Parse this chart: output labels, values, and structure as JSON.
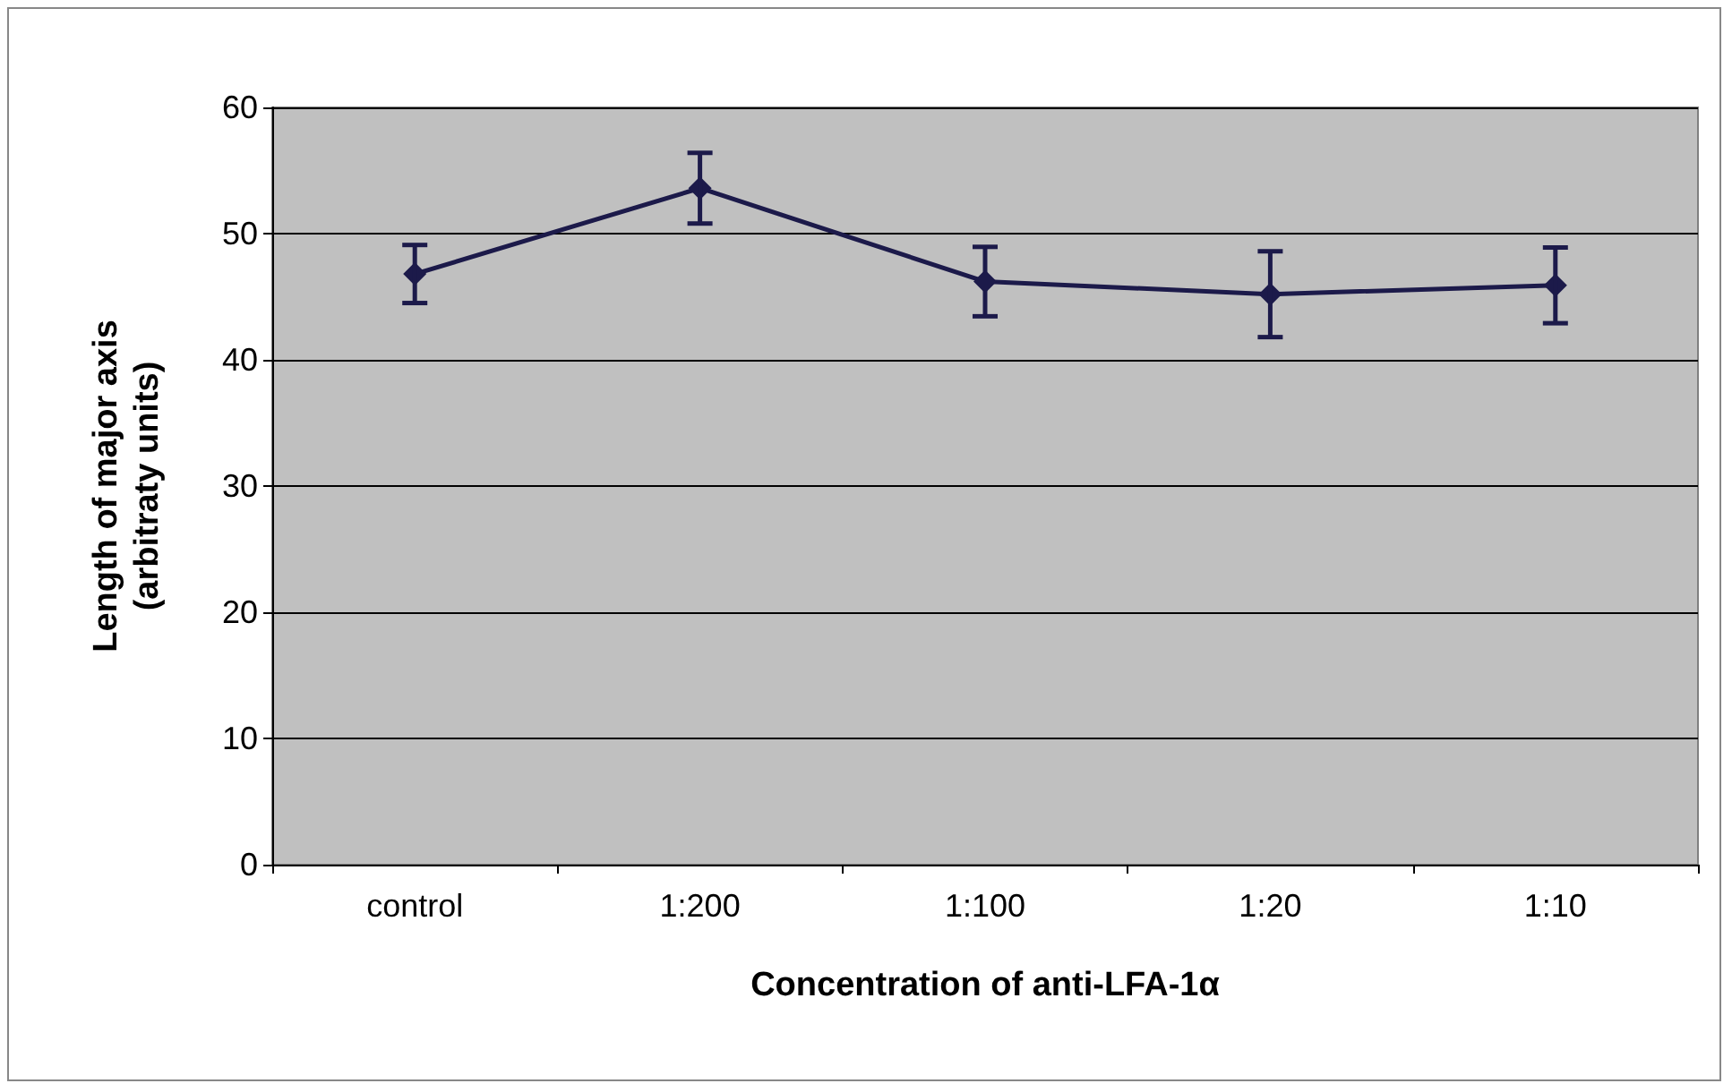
{
  "chart_data": {
    "type": "line",
    "xlabel": "Concentration of anti-LFA-1α",
    "ylabel": "Length of major axis\n(arbitraty units)",
    "categories": [
      "control",
      "1:200",
      "1:100",
      "1:20",
      "1:10"
    ],
    "series": [
      {
        "color": "#1c1a4a",
        "values": [
          46.8,
          53.6,
          46.2,
          45.2,
          45.9
        ],
        "errors": [
          2.3,
          2.8,
          2.75,
          3.4,
          3.0
        ]
      }
    ],
    "ylim": [
      0,
      60
    ],
    "yticks": [
      0,
      10,
      20,
      30,
      40,
      50,
      60
    ],
    "grid": "y",
    "marker": "diamond",
    "line_style": "solid"
  }
}
